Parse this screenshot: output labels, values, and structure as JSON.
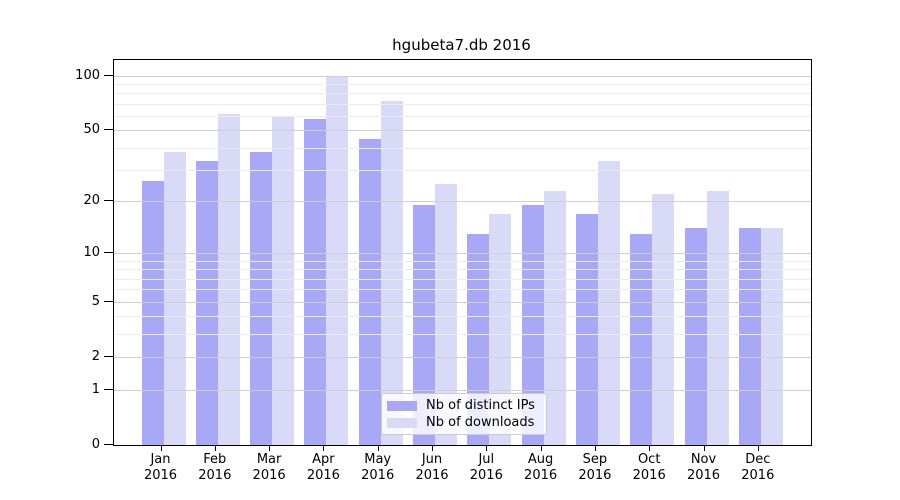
{
  "figure": {
    "title": "hgubeta7.db 2016"
  },
  "chart_data": {
    "type": "bar",
    "title": "hgubeta7.db 2016",
    "x_months": [
      "Jan",
      "Feb",
      "Mar",
      "Apr",
      "May",
      "Jun",
      "Jul",
      "Aug",
      "Sep",
      "Oct",
      "Nov",
      "Dec"
    ],
    "x_year": "2016",
    "series": [
      {
        "name": "Nb of distinct IPs",
        "color": "#a8a8f7",
        "values": [
          26,
          34,
          38,
          58,
          45,
          19,
          13,
          19,
          17,
          13,
          14,
          14
        ]
      },
      {
        "name": "Nb of downloads",
        "color": "#d9d9f8",
        "values": [
          38,
          62,
          59,
          100,
          73,
          25,
          17,
          23,
          34,
          22,
          23,
          14
        ]
      }
    ],
    "y_axis": {
      "scale": "log1p",
      "ticks": [
        0,
        1,
        2,
        5,
        10,
        20,
        50,
        100
      ],
      "minor_gridlines": [
        3,
        4,
        6,
        7,
        8,
        9,
        30,
        40,
        60,
        70,
        80,
        90
      ],
      "ylim": [
        0,
        122
      ]
    },
    "legend": {
      "location": "lower center inside plot"
    },
    "grid": true
  },
  "colors": {
    "background": "#ffffff",
    "axis": "#000000",
    "grid_major": "#cfcfcf",
    "grid_minor": "#ececec",
    "legend_border": "#cccccc"
  }
}
